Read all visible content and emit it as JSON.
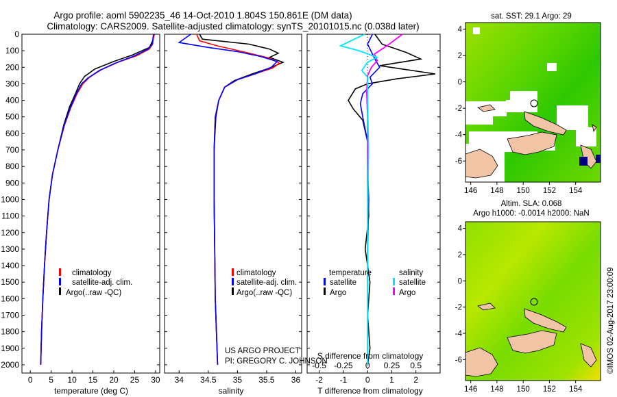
{
  "header": {
    "line1": "Argo profile: aoml 5902235_46 14-Oct-2010 1.804S 150.861E (DM data)",
    "line2": "Climatology: CARS2009. Satellite-adjusted climatology: synTS_20101015.nc (0.038d later)"
  },
  "colors": {
    "climatology": "#ff0000",
    "satellite": "#0000ff",
    "argo": "#000000",
    "sal_satellite": "#00e5ff",
    "sal_argo": "#ff00ff",
    "land": "#f0c4a4",
    "missing": "#ffffff"
  },
  "chart_data": [
    {
      "type": "line",
      "id": "temperature",
      "xlabel": "temperature (deg C)",
      "xlim": [
        -2,
        31
      ],
      "ylim": [
        0,
        2050
      ],
      "y_reversed": true,
      "xticks": [
        0,
        5,
        10,
        15,
        20,
        25,
        30
      ],
      "yticks": [
        0,
        100,
        200,
        300,
        400,
        500,
        600,
        700,
        800,
        900,
        1000,
        1100,
        1200,
        1300,
        1400,
        1500,
        1600,
        1700,
        1800,
        1900,
        2000
      ],
      "legend": [
        "climatology",
        "satellite-adj. clim.",
        "Argo(..raw -QC)"
      ],
      "series": [
        {
          "name": "climatology",
          "color": "#ff0000",
          "points": [
            [
              29.6,
              0
            ],
            [
              29.3,
              60
            ],
            [
              28.5,
              90
            ],
            [
              25.5,
              130
            ],
            [
              21,
              170
            ],
            [
              17,
              215
            ],
            [
              14.2,
              260
            ],
            [
              12.6,
              300
            ],
            [
              11.2,
              360
            ],
            [
              9.6,
              450
            ],
            [
              8.2,
              550
            ],
            [
              6.6,
              700
            ],
            [
              5.3,
              850
            ],
            [
              4.5,
              1000
            ],
            [
              3.9,
              1200
            ],
            [
              3.4,
              1400
            ],
            [
              3.0,
              1600
            ],
            [
              2.7,
              1800
            ],
            [
              2.5,
              2000
            ]
          ]
        },
        {
          "name": "satellite-adj. clim.",
          "color": "#0000ff",
          "points": [
            [
              29.5,
              0
            ],
            [
              29.2,
              60
            ],
            [
              28.2,
              90
            ],
            [
              25,
              130
            ],
            [
              20.3,
              175
            ],
            [
              16.5,
              220
            ],
            [
              13.8,
              265
            ],
            [
              12.3,
              300
            ],
            [
              11,
              360
            ],
            [
              9.5,
              450
            ],
            [
              8.1,
              550
            ],
            [
              6.6,
              700
            ],
            [
              5.3,
              850
            ],
            [
              4.5,
              1000
            ],
            [
              3.9,
              1200
            ],
            [
              3.4,
              1400
            ],
            [
              3.0,
              1600
            ],
            [
              2.7,
              1800
            ],
            [
              2.5,
              2000
            ]
          ]
        },
        {
          "name": "Argo(..raw -QC)",
          "color": "#000000",
          "points": [
            [
              29.7,
              0
            ],
            [
              29.3,
              40
            ],
            [
              28.5,
              80
            ],
            [
              24.5,
              125
            ],
            [
              20,
              165
            ],
            [
              15.5,
              210
            ],
            [
              13,
              255
            ],
            [
              11.8,
              300
            ],
            [
              10.8,
              360
            ],
            [
              9.4,
              440
            ],
            [
              8,
              550
            ],
            [
              6.6,
              700
            ],
            [
              5.3,
              850
            ],
            [
              4.5,
              1000
            ],
            [
              3.9,
              1200
            ],
            [
              3.4,
              1400
            ],
            [
              3.0,
              1600
            ],
            [
              2.7,
              1800
            ],
            [
              2.5,
              2000
            ]
          ]
        }
      ]
    },
    {
      "type": "line",
      "id": "salinity",
      "xlabel": "salinity",
      "xlim": [
        33.75,
        36.1
      ],
      "ylim": [
        0,
        2050
      ],
      "y_reversed": true,
      "xticks": [
        34,
        34.5,
        35,
        35.5,
        36
      ],
      "legend": [
        "climatology",
        "satellite-adj. clim.",
        "Argo(..raw -QC)"
      ],
      "series": [
        {
          "name": "climatology",
          "color": "#ff0000",
          "points": [
            [
              34.3,
              0
            ],
            [
              34.35,
              40
            ],
            [
              34.65,
              70
            ],
            [
              35.15,
              110
            ],
            [
              35.55,
              145
            ],
            [
              35.72,
              175
            ],
            [
              35.6,
              205
            ],
            [
              35.3,
              240
            ],
            [
              35.0,
              275
            ],
            [
              34.78,
              320
            ],
            [
              34.68,
              400
            ],
            [
              34.62,
              500
            ],
            [
              34.6,
              700
            ],
            [
              34.6,
              1000
            ],
            [
              34.61,
              1300
            ],
            [
              34.62,
              1600
            ],
            [
              34.64,
              1800
            ],
            [
              34.66,
              2000
            ]
          ]
        },
        {
          "name": "satellite-adj. clim.",
          "color": "#0000ff",
          "points": [
            [
              34.2,
              0
            ],
            [
              34.0,
              50
            ],
            [
              34.5,
              80
            ],
            [
              35.0,
              105
            ],
            [
              35.4,
              135
            ],
            [
              35.68,
              165
            ],
            [
              35.58,
              200
            ],
            [
              35.3,
              240
            ],
            [
              35.0,
              275
            ],
            [
              34.78,
              320
            ],
            [
              34.68,
              400
            ],
            [
              34.62,
              500
            ],
            [
              34.6,
              700
            ],
            [
              34.6,
              1000
            ],
            [
              34.61,
              1300
            ],
            [
              34.62,
              1600
            ],
            [
              34.64,
              1800
            ],
            [
              34.66,
              2000
            ]
          ]
        },
        {
          "name": "Argo(..raw -QC)",
          "color": "#000000",
          "points": [
            [
              34.35,
              0
            ],
            [
              34.4,
              30
            ],
            [
              35.2,
              60
            ],
            [
              35.55,
              90
            ],
            [
              35.7,
              115
            ],
            [
              35.55,
              140
            ],
            [
              35.78,
              170
            ],
            [
              35.55,
              205
            ],
            [
              35.25,
              240
            ],
            [
              34.95,
              280
            ],
            [
              34.78,
              320
            ],
            [
              34.68,
              400
            ],
            [
              34.63,
              500
            ],
            [
              34.6,
              700
            ],
            [
              34.6,
              1000
            ],
            [
              34.61,
              1300
            ],
            [
              34.62,
              1600
            ],
            [
              34.64,
              1800
            ],
            [
              34.66,
              2000
            ]
          ]
        }
      ]
    },
    {
      "type": "line",
      "id": "differences",
      "xlabel_T": "T difference from climatology",
      "xlabel_S": "S difference from climatology",
      "xlim_T": [
        -2.5,
        3.0
      ],
      "xlim_S": [
        -0.625,
        0.75
      ],
      "xticks_T": [
        -2,
        -1,
        0,
        1,
        2
      ],
      "xticks_S": [
        "-0.5",
        "-0.25",
        "0",
        "0.25",
        "0.5"
      ],
      "legend_temperature_title": "temperature",
      "legend_salinity_title": "salinity",
      "legend_T": [
        "satellite",
        "Argo"
      ],
      "legend_S": [
        "satellite",
        "Argo"
      ],
      "series": [
        {
          "name": "T satellite",
          "color": "#0000ff",
          "points": [
            [
              0.2,
              0
            ],
            [
              0,
              60
            ],
            [
              0.3,
              150
            ],
            [
              0.5,
              200
            ],
            [
              0.1,
              260
            ],
            [
              0.2,
              300
            ],
            [
              -0.2,
              360
            ],
            [
              -0.3,
              420
            ],
            [
              -0.2,
              500
            ],
            [
              0,
              650
            ],
            [
              0,
              800
            ],
            [
              0.05,
              1000
            ],
            [
              0,
              1300
            ],
            [
              0,
              2000
            ]
          ]
        },
        {
          "name": "T Argo",
          "color": "#000000",
          "points": [
            [
              0.3,
              0
            ],
            [
              0.6,
              60
            ],
            [
              1.6,
              110
            ],
            [
              2.2,
              150
            ],
            [
              0.5,
              190
            ],
            [
              2.8,
              240
            ],
            [
              1.2,
              270
            ],
            [
              0,
              300
            ],
            [
              -0.5,
              330
            ],
            [
              -0.8,
              400
            ],
            [
              -0.6,
              450
            ],
            [
              -0.2,
              520
            ],
            [
              0,
              650
            ],
            [
              0,
              900
            ],
            [
              0.05,
              1100
            ],
            [
              -0.1,
              1300
            ],
            [
              0.1,
              1500
            ],
            [
              0,
              1700
            ],
            [
              0.1,
              1900
            ],
            [
              0,
              2000
            ]
          ]
        },
        {
          "name": "S satellite",
          "color": "#00e5ff",
          "points": [
            [
              -0.03,
              0
            ],
            [
              -0.28,
              70
            ],
            [
              -0.09,
              100
            ],
            [
              0.1,
              140
            ],
            [
              0,
              170
            ],
            [
              -0.06,
              220
            ],
            [
              0,
              260
            ],
            [
              0,
              400
            ],
            [
              0.01,
              700
            ],
            [
              0,
              1100
            ],
            [
              0,
              1600
            ],
            [
              0,
              2000
            ]
          ]
        },
        {
          "name": "S Argo",
          "color": "#ff00ff",
          "points": [
            [
              0.36,
              0
            ],
            [
              0.2,
              70
            ],
            [
              0.07,
              120
            ],
            [
              0.1,
              160
            ],
            [
              0.04,
              200
            ],
            [
              0,
              250
            ],
            [
              -0.01,
              350
            ],
            [
              0,
              500
            ],
            [
              0,
              800
            ],
            [
              0,
              1200
            ],
            [
              0,
              2000
            ]
          ]
        }
      ]
    }
  ],
  "maps": {
    "sst": {
      "title": "sat. SST: 29.1 Argo: 29",
      "yticks": [
        "4",
        "2",
        "0",
        "-2",
        "-4",
        "-6"
      ],
      "xticks": [
        "146",
        "148",
        "150",
        "152",
        "154"
      ]
    },
    "sla": {
      "title1": "Altim. SLA: 0.068",
      "title2": "Argo h1000: -0.0014 h2000: NaN",
      "yticks": [
        "4",
        "2",
        "0",
        "-2",
        "-4",
        "-6"
      ],
      "xticks": [
        "146",
        "148",
        "150",
        "152",
        "154"
      ]
    }
  },
  "credits": {
    "project": "US ARGO PROJECT",
    "pi": "PI: GREGORY C. JOHNSON",
    "stamp": "©IMOS 02-Aug-2017 23:00:09"
  }
}
